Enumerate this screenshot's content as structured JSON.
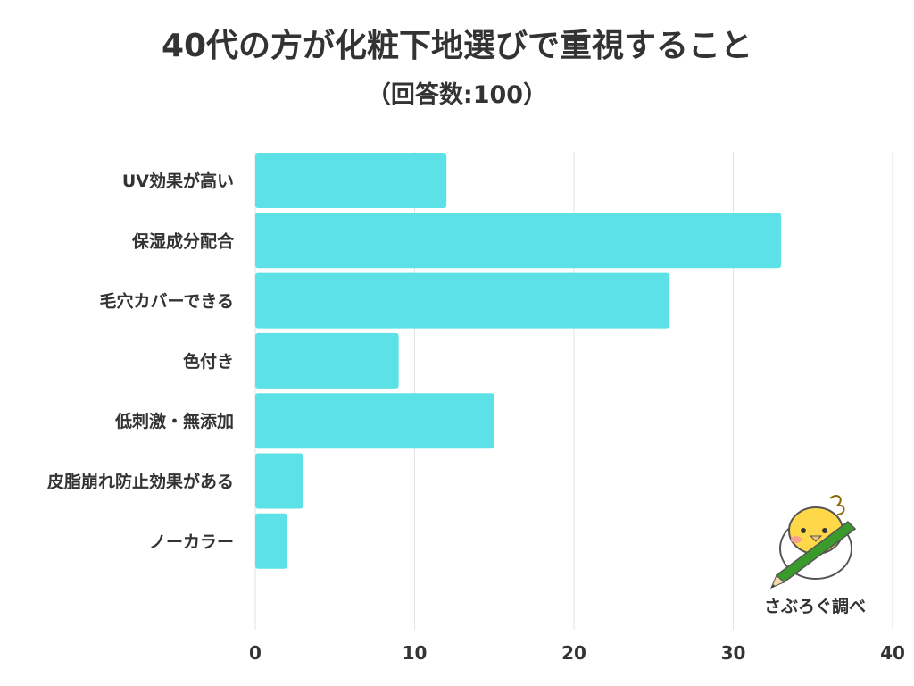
{
  "header": {
    "title": "40代の方が化粧下地選びで重視すること",
    "subtitle": "（回答数:100）"
  },
  "credit": "さぶろぐ調べ",
  "colors": {
    "bar": "#5ce1e6",
    "grid": "#e3e3e3",
    "text": "#333333"
  },
  "chart_data": {
    "type": "bar",
    "orientation": "horizontal",
    "categories": [
      "UV効果が高い",
      "保湿成分配合",
      "毛穴カバーできる",
      "色付き",
      "低刺激・無添加",
      "皮脂崩れ防止効果がある",
      "ノーカラー"
    ],
    "values": [
      12,
      33,
      26,
      9,
      15,
      3,
      2
    ],
    "xlim": [
      0,
      40
    ],
    "xticks": [
      0,
      10,
      20,
      30,
      40
    ],
    "title": "40代の方が化粧下地選びで重視すること",
    "subtitle": "（回答数:100）",
    "xlabel": "",
    "ylabel": "",
    "grid": true,
    "legend": "none"
  }
}
